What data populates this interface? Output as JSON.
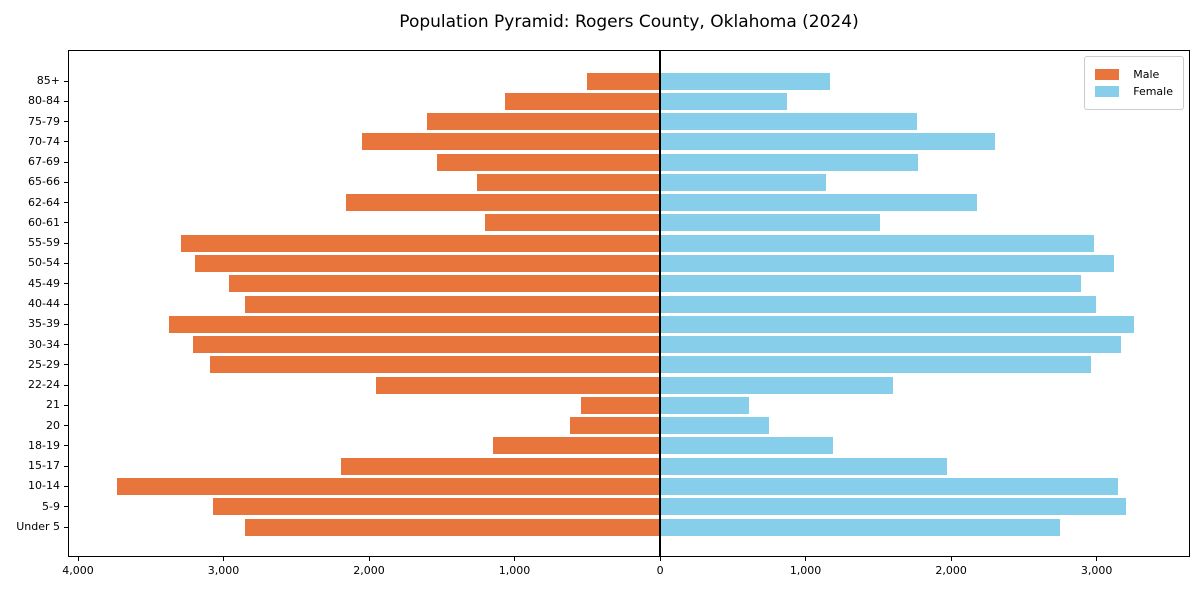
{
  "title": "Population Pyramid: Rogers County, Oklahoma (2024)",
  "legend": {
    "male_label": "Male",
    "female_label": "Female"
  },
  "colors": {
    "male": "#e8763c",
    "female": "#87ceeb",
    "axis": "#000000",
    "legend_border": "#cccccc"
  },
  "chart_data": {
    "type": "bar",
    "orientation": "horizontal-population-pyramid",
    "title": "Population Pyramid: Rogers County, Oklahoma (2024)",
    "categories": [
      "85+",
      "80-84",
      "75-79",
      "70-74",
      "67-69",
      "65-66",
      "62-64",
      "60-61",
      "55-59",
      "50-54",
      "45-49",
      "40-44",
      "35-39",
      "30-34",
      "25-29",
      "22-24",
      "21",
      "20",
      "18-19",
      "15-17",
      "10-14",
      "5-9",
      "Under 5"
    ],
    "series": [
      {
        "name": "Male",
        "side": "left",
        "color": "#e8763c",
        "values": [
          505,
          1065,
          1600,
          2050,
          1535,
          1260,
          2160,
          1200,
          3290,
          3195,
          2960,
          2850,
          3375,
          3210,
          3090,
          1950,
          545,
          620,
          1145,
          2195,
          3730,
          3075,
          2855
        ]
      },
      {
        "name": "Female",
        "side": "right",
        "color": "#87ceeb",
        "values": [
          1165,
          875,
          1765,
          2300,
          1775,
          1140,
          2180,
          1510,
          2980,
          3120,
          2895,
          2995,
          3255,
          3165,
          2965,
          1600,
          610,
          750,
          1190,
          1970,
          3145,
          3200,
          2750
        ]
      }
    ],
    "x_ticks": [
      -4000,
      -3000,
      -2000,
      -1000,
      0,
      1000,
      2000,
      3000
    ],
    "x_tick_labels": [
      "4,000",
      "3,000",
      "2,000",
      "1,000",
      "0",
      "1,000",
      "2,000",
      "3,000"
    ],
    "xlim": [
      -4069,
      3642
    ],
    "grid": false,
    "center_line": true,
    "legend_position": "upper right"
  }
}
